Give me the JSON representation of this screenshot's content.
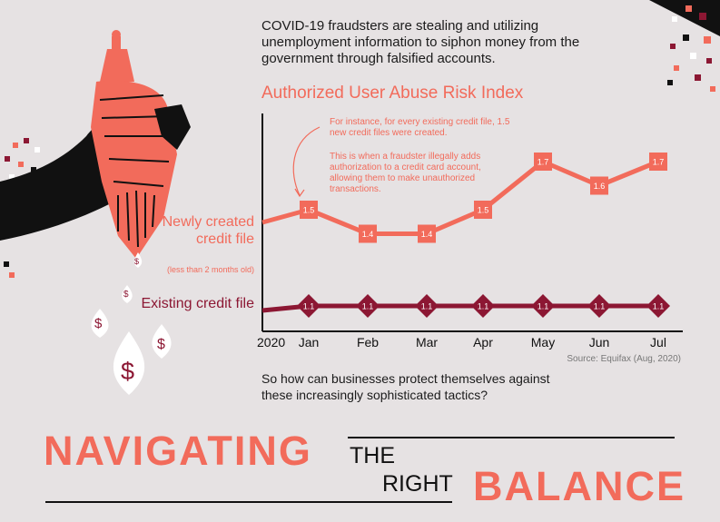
{
  "colors": {
    "background": "#e6e2e3",
    "coral": "#f26b5b",
    "crimson": "#8c1733",
    "black": "#111111"
  },
  "intro": {
    "text": "COVID-19 fraudsters are stealing and utilizing unemployment information to siphon money from the government through falsified accounts."
  },
  "annotations": {
    "first": "For instance, for every existing credit file, 1.5 new credit files were created.",
    "second": "This is when a fraudster illegally adds authorization to a credit card account, allowing them to make unauthorized transactions."
  },
  "series_labels": {
    "new": "Newly created credit file",
    "new_sub": "(less than 2 months old)",
    "existing": "Existing credit file"
  },
  "chart_data": {
    "type": "line",
    "title": "Authorized User Abuse Risk Index",
    "year_label": "2020",
    "categories": [
      "Jan",
      "Feb",
      "Mar",
      "Apr",
      "May",
      "Jun",
      "Jul"
    ],
    "series": [
      {
        "name": "Newly created credit file",
        "values": [
          1.5,
          1.4,
          1.4,
          1.5,
          1.7,
          1.6,
          1.7
        ],
        "color": "#f26b5b"
      },
      {
        "name": "Existing credit file",
        "values": [
          1.1,
          1.1,
          1.1,
          1.1,
          1.1,
          1.1,
          1.1
        ],
        "color": "#8c1733"
      }
    ],
    "source": "Source: Equifax (Aug, 2020)",
    "grid": false
  },
  "closing": {
    "question": "So how can businesses protect themselves against these increasingly sophisticated tactics?"
  },
  "headline": {
    "navigating": "NAVIGATING",
    "the": "THE",
    "right": "RIGHT",
    "balance": "BALANCE"
  },
  "illustration": {
    "drop_symbol": "$"
  },
  "icons": [
    "capitol-dome-icon",
    "hand-icon",
    "money-drop-icon"
  ]
}
